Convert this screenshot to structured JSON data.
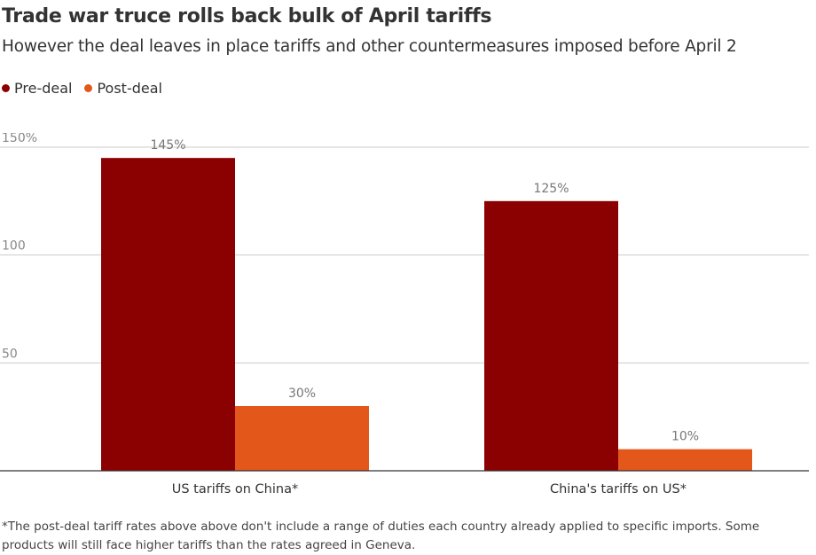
{
  "title": "Trade war truce rolls back bulk of April tariffs",
  "subtitle": "However the deal leaves in place tariffs and other countermeasures imposed before April 2",
  "legend": [
    {
      "label": "Pre-deal",
      "color": "#8b0000"
    },
    {
      "label": "Post-deal",
      "color": "#e4571b"
    }
  ],
  "footnote": "*The post-deal tariff rates above above don't include a range of duties each country already applied to specific imports. Some products will still face higher tariffs than the rates agreed in Geneva.",
  "chart_data": {
    "type": "bar",
    "categories": [
      "US tariffs on China*",
      "China's tariffs on US*"
    ],
    "series": [
      {
        "name": "Pre-deal",
        "values": [
          145,
          125
        ],
        "labels": [
          "145%",
          "125%"
        ],
        "color": "#8b0000"
      },
      {
        "name": "Post-deal",
        "values": [
          30,
          10
        ],
        "labels": [
          "30%",
          "10%"
        ],
        "color": "#e4571b"
      }
    ],
    "ylim": [
      0,
      150
    ],
    "yticks": [
      {
        "value": 150,
        "label": "150%"
      },
      {
        "value": 100,
        "label": "100"
      },
      {
        "value": 50,
        "label": "50"
      }
    ],
    "grid": true,
    "legend_position": "top-left"
  }
}
